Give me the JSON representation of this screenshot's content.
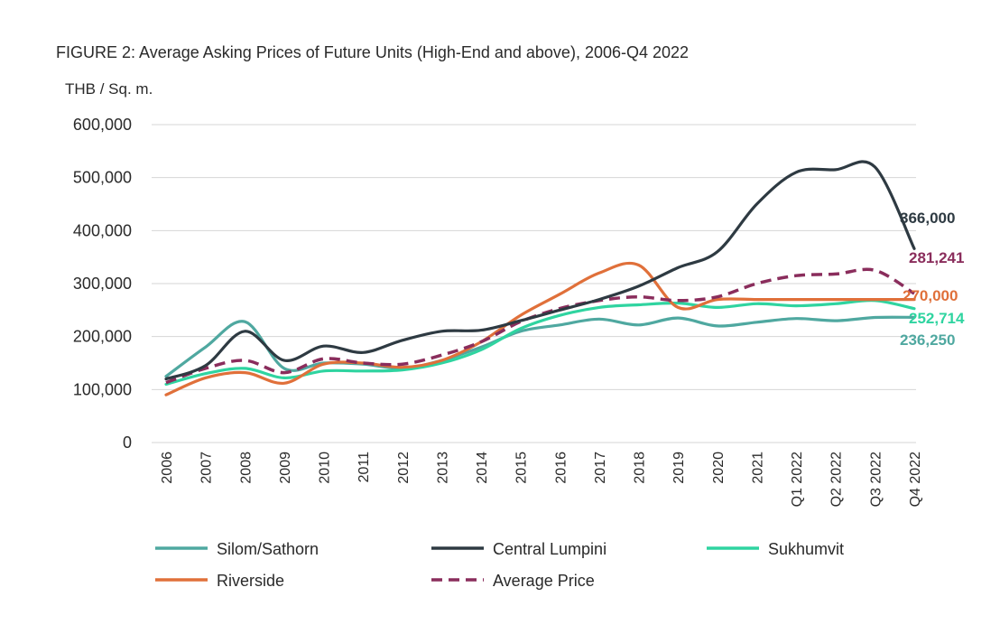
{
  "chart_data": {
    "type": "line",
    "title": "FIGURE 2: Average Asking Prices of Future Units (High-End and above), 2006-Q4 2022",
    "ylabel": "THB / Sq. m.",
    "xlabel": "",
    "ylim": [
      0,
      600000
    ],
    "y_ticks": [
      {
        "value": 0,
        "label": "0"
      },
      {
        "value": 100000,
        "label": "100,000"
      },
      {
        "value": 200000,
        "label": "200,000"
      },
      {
        "value": 300000,
        "label": "300,000"
      },
      {
        "value": 400000,
        "label": "400,000"
      },
      {
        "value": 500000,
        "label": "500,000"
      },
      {
        "value": 600000,
        "label": "600,000"
      }
    ],
    "categories": [
      "2006",
      "2007",
      "2008",
      "2009",
      "2010",
      "2011",
      "2012",
      "2013",
      "2014",
      "2015",
      "2016",
      "2017",
      "2018",
      "2019",
      "2020",
      "2021",
      "Q1 2022",
      "Q2 2022",
      "Q3 2022",
      "Q4 2022"
    ],
    "grid": true,
    "legend_position": "bottom",
    "series": [
      {
        "name": "Silom/Sathorn",
        "color": "#4fa8a0",
        "dashed": false,
        "values": [
          125000,
          180000,
          228000,
          140000,
          150000,
          148000,
          140000,
          155000,
          180000,
          210000,
          222000,
          233000,
          222000,
          235000,
          220000,
          227000,
          234000,
          230000,
          236000,
          236250
        ],
        "end_label": "236,250"
      },
      {
        "name": "Central Lumpini",
        "color": "#2e3a42",
        "dashed": false,
        "values": [
          120000,
          145000,
          210000,
          155000,
          182000,
          170000,
          193000,
          210000,
          212000,
          230000,
          250000,
          270000,
          295000,
          330000,
          360000,
          450000,
          510000,
          515000,
          520000,
          366000
        ],
        "end_label": "366,000"
      },
      {
        "name": "Sukhumvit",
        "color": "#2fd4a0",
        "dashed": false,
        "values": [
          110000,
          130000,
          140000,
          122000,
          135000,
          135000,
          137000,
          150000,
          175000,
          215000,
          240000,
          255000,
          260000,
          263000,
          255000,
          262000,
          258000,
          262000,
          268000,
          252714
        ],
        "end_label": "252,714"
      },
      {
        "name": "Riverside",
        "color": "#e0703a",
        "dashed": false,
        "values": [
          90000,
          122000,
          132000,
          112000,
          148000,
          150000,
          142000,
          155000,
          190000,
          240000,
          280000,
          320000,
          335000,
          255000,
          270000,
          270000,
          270000,
          270000,
          270000,
          270000
        ],
        "end_label": "270,000"
      },
      {
        "name": "Average Price",
        "color": "#8a2d5c",
        "dashed": true,
        "values": [
          113000,
          140000,
          155000,
          132000,
          158000,
          150000,
          148000,
          165000,
          190000,
          228000,
          253000,
          268000,
          275000,
          268000,
          275000,
          300000,
          315000,
          318000,
          325000,
          281241
        ],
        "end_label": "281,241"
      }
    ]
  }
}
